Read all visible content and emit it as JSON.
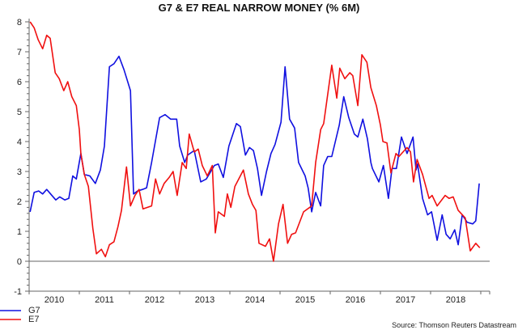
{
  "chart_data": {
    "type": "line",
    "title": "G7 & E7 REAL NARROW MONEY (% 6M)",
    "xlabel": "",
    "ylabel": "",
    "xlim": [
      2010,
      2019.18
    ],
    "ylim": [
      -1,
      8
    ],
    "yticks": [
      "8",
      "7",
      "6",
      "5",
      "4",
      "3",
      "2",
      "1",
      "0",
      "-1"
    ],
    "yticks_values": [
      8,
      7,
      6,
      5,
      4,
      3,
      2,
      1,
      0,
      -1
    ],
    "xtick_labels": [
      "2010",
      "2011",
      "2012",
      "2013",
      "2014",
      "2015",
      "2016",
      "2017",
      "2018"
    ],
    "zero_line": true,
    "grid": false,
    "legend_position": "bottom-left",
    "source": "Source: Thomson Reuters Datastream",
    "series": [
      {
        "name": "G7",
        "color": "#1010e0",
        "points": [
          [
            2010.02,
            1.65
          ],
          [
            2010.1,
            2.3
          ],
          [
            2010.19,
            2.35
          ],
          [
            2010.27,
            2.25
          ],
          [
            2010.35,
            2.4
          ],
          [
            2010.53,
            2.05
          ],
          [
            2010.61,
            2.15
          ],
          [
            2010.71,
            2.05
          ],
          [
            2010.79,
            2.1
          ],
          [
            2010.87,
            2.85
          ],
          [
            2010.94,
            2.75
          ],
          [
            2011.03,
            3.6
          ],
          [
            2011.1,
            2.9
          ],
          [
            2011.21,
            2.85
          ],
          [
            2011.32,
            2.6
          ],
          [
            2011.42,
            3.05
          ],
          [
            2011.5,
            3.85
          ],
          [
            2011.6,
            6.5
          ],
          [
            2011.69,
            6.6
          ],
          [
            2011.79,
            6.85
          ],
          [
            2011.89,
            6.4
          ],
          [
            2012.02,
            5.7
          ],
          [
            2012.08,
            2.25
          ],
          [
            2012.16,
            2.35
          ],
          [
            2012.26,
            2.4
          ],
          [
            2012.34,
            2.45
          ],
          [
            2012.44,
            3.3
          ],
          [
            2012.6,
            4.8
          ],
          [
            2012.71,
            4.9
          ],
          [
            2012.82,
            4.75
          ],
          [
            2012.94,
            4.75
          ],
          [
            2013.0,
            3.85
          ],
          [
            2013.1,
            3.3
          ],
          [
            2013.16,
            3.55
          ],
          [
            2013.29,
            3.7
          ],
          [
            2013.42,
            2.65
          ],
          [
            2013.53,
            2.75
          ],
          [
            2013.69,
            3.2
          ],
          [
            2013.77,
            3.25
          ],
          [
            2013.87,
            2.8
          ],
          [
            2013.98,
            3.85
          ],
          [
            2014.13,
            4.6
          ],
          [
            2014.21,
            4.5
          ],
          [
            2014.31,
            3.55
          ],
          [
            2014.39,
            3.8
          ],
          [
            2014.47,
            3.7
          ],
          [
            2014.55,
            3.1
          ],
          [
            2014.63,
            2.2
          ],
          [
            2014.73,
            3.0
          ],
          [
            2014.82,
            3.6
          ],
          [
            2014.9,
            3.9
          ],
          [
            2015.02,
            4.65
          ],
          [
            2015.1,
            6.5
          ],
          [
            2015.19,
            4.75
          ],
          [
            2015.29,
            4.45
          ],
          [
            2015.37,
            3.3
          ],
          [
            2015.5,
            2.85
          ],
          [
            2015.56,
            2.45
          ],
          [
            2015.63,
            1.65
          ],
          [
            2015.71,
            2.3
          ],
          [
            2015.81,
            1.85
          ],
          [
            2015.87,
            3.2
          ],
          [
            2015.95,
            3.5
          ],
          [
            2016.03,
            3.5
          ],
          [
            2016.18,
            4.55
          ],
          [
            2016.27,
            5.5
          ],
          [
            2016.37,
            4.8
          ],
          [
            2016.48,
            4.25
          ],
          [
            2016.55,
            4.15
          ],
          [
            2016.65,
            4.75
          ],
          [
            2016.74,
            4.1
          ],
          [
            2016.81,
            3.3
          ],
          [
            2016.84,
            3.1
          ],
          [
            2016.97,
            2.65
          ],
          [
            2017.06,
            3.2
          ],
          [
            2017.16,
            2.1
          ],
          [
            2017.23,
            3.1
          ],
          [
            2017.32,
            3.1
          ],
          [
            2017.42,
            4.15
          ],
          [
            2017.53,
            3.6
          ],
          [
            2017.65,
            4.15
          ],
          [
            2017.71,
            3.05
          ],
          [
            2017.74,
            3.25
          ],
          [
            2017.84,
            2.1
          ],
          [
            2017.94,
            1.55
          ],
          [
            2018.02,
            1.65
          ],
          [
            2018.13,
            0.7
          ],
          [
            2018.23,
            1.55
          ],
          [
            2018.31,
            0.9
          ],
          [
            2018.39,
            0.75
          ],
          [
            2018.48,
            1.05
          ],
          [
            2018.55,
            0.55
          ],
          [
            2018.63,
            1.55
          ],
          [
            2018.73,
            1.3
          ],
          [
            2018.84,
            1.25
          ],
          [
            2018.9,
            1.35
          ],
          [
            2018.97,
            2.6
          ]
        ]
      },
      {
        "name": "E7",
        "color": "#f01010",
        "points": [
          [
            2010.02,
            8.0
          ],
          [
            2010.1,
            7.8
          ],
          [
            2010.18,
            7.4
          ],
          [
            2010.27,
            7.1
          ],
          [
            2010.35,
            7.55
          ],
          [
            2010.42,
            7.45
          ],
          [
            2010.52,
            6.3
          ],
          [
            2010.6,
            6.1
          ],
          [
            2010.69,
            5.7
          ],
          [
            2010.77,
            6.0
          ],
          [
            2010.85,
            5.5
          ],
          [
            2010.94,
            5.2
          ],
          [
            2011.0,
            4.4
          ],
          [
            2011.03,
            3.6
          ],
          [
            2011.1,
            2.9
          ],
          [
            2011.18,
            2.5
          ],
          [
            2011.27,
            1.1
          ],
          [
            2011.34,
            0.25
          ],
          [
            2011.44,
            0.4
          ],
          [
            2011.52,
            0.15
          ],
          [
            2011.6,
            0.55
          ],
          [
            2011.69,
            0.65
          ],
          [
            2011.77,
            1.15
          ],
          [
            2011.84,
            1.7
          ],
          [
            2011.94,
            3.15
          ],
          [
            2012.02,
            1.85
          ],
          [
            2012.11,
            2.2
          ],
          [
            2012.19,
            2.4
          ],
          [
            2012.27,
            1.75
          ],
          [
            2012.44,
            1.85
          ],
          [
            2012.52,
            2.75
          ],
          [
            2012.6,
            2.25
          ],
          [
            2012.69,
            2.6
          ],
          [
            2012.79,
            2.8
          ],
          [
            2012.87,
            3.0
          ],
          [
            2012.95,
            2.2
          ],
          [
            2013.05,
            3.3
          ],
          [
            2013.13,
            3.1
          ],
          [
            2013.19,
            4.25
          ],
          [
            2013.29,
            3.65
          ],
          [
            2013.37,
            3.75
          ],
          [
            2013.45,
            3.2
          ],
          [
            2013.55,
            2.85
          ],
          [
            2013.65,
            3.2
          ],
          [
            2013.71,
            0.95
          ],
          [
            2013.77,
            1.65
          ],
          [
            2013.89,
            1.5
          ],
          [
            2013.95,
            2.25
          ],
          [
            2014.02,
            1.8
          ],
          [
            2014.1,
            2.5
          ],
          [
            2014.27,
            3.05
          ],
          [
            2014.37,
            2.25
          ],
          [
            2014.45,
            1.9
          ],
          [
            2014.52,
            1.7
          ],
          [
            2014.58,
            0.6
          ],
          [
            2014.71,
            0.5
          ],
          [
            2014.79,
            0.75
          ],
          [
            2014.87,
            0.0
          ],
          [
            2014.97,
            1.25
          ],
          [
            2015.06,
            1.9
          ],
          [
            2015.15,
            0.6
          ],
          [
            2015.23,
            0.9
          ],
          [
            2015.31,
            0.95
          ],
          [
            2015.47,
            1.65
          ],
          [
            2015.63,
            1.85
          ],
          [
            2015.71,
            3.3
          ],
          [
            2015.81,
            4.4
          ],
          [
            2015.87,
            4.6
          ],
          [
            2016.03,
            6.55
          ],
          [
            2016.13,
            5.45
          ],
          [
            2016.19,
            6.45
          ],
          [
            2016.29,
            6.1
          ],
          [
            2016.39,
            6.3
          ],
          [
            2016.45,
            6.2
          ],
          [
            2016.55,
            5.2
          ],
          [
            2016.63,
            6.9
          ],
          [
            2016.73,
            6.65
          ],
          [
            2016.81,
            5.8
          ],
          [
            2016.92,
            5.2
          ],
          [
            2017.0,
            4.55
          ],
          [
            2017.05,
            4.0
          ],
          [
            2017.13,
            3.95
          ],
          [
            2017.21,
            2.95
          ],
          [
            2017.31,
            3.6
          ],
          [
            2017.37,
            3.5
          ],
          [
            2017.53,
            3.8
          ],
          [
            2017.6,
            3.65
          ],
          [
            2017.66,
            2.65
          ],
          [
            2017.73,
            3.4
          ],
          [
            2017.84,
            2.9
          ],
          [
            2017.97,
            2.1
          ],
          [
            2018.03,
            2.2
          ],
          [
            2018.13,
            1.85
          ],
          [
            2018.29,
            2.2
          ],
          [
            2018.37,
            2.1
          ],
          [
            2018.45,
            2.15
          ],
          [
            2018.55,
            1.7
          ],
          [
            2018.69,
            1.45
          ],
          [
            2018.79,
            0.35
          ],
          [
            2018.9,
            0.6
          ],
          [
            2018.98,
            0.45
          ]
        ]
      }
    ]
  }
}
